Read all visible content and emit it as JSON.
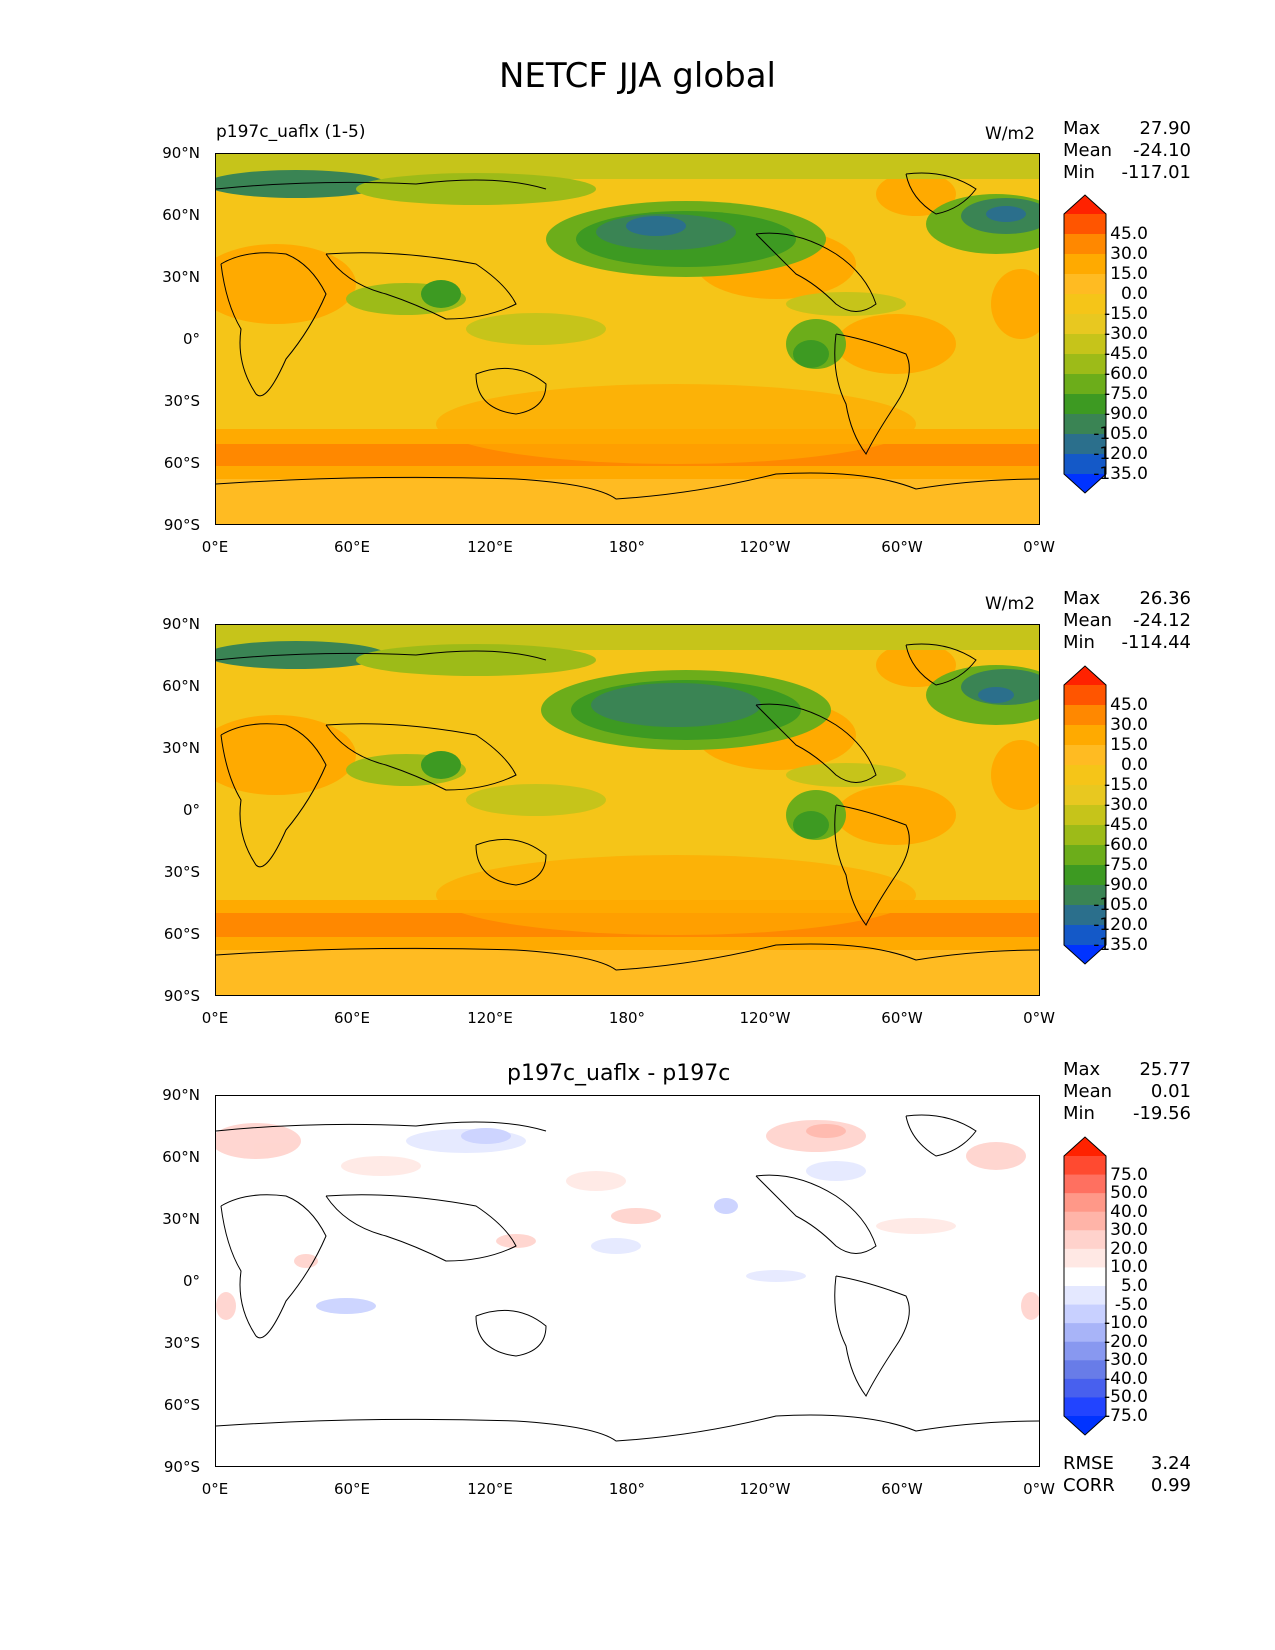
{
  "title": "NETCF JJA global",
  "lat_ticks": [
    "90°N",
    "60°N",
    "30°N",
    "0°",
    "30°S",
    "60°S",
    "90°S"
  ],
  "lon_ticks": [
    "0°E",
    "60°E",
    "120°E",
    "180°",
    "120°W",
    "60°W",
    "0°W"
  ],
  "panels": [
    {
      "left_label": "p197c_uaflx (1-5)",
      "units": "W/m2",
      "stats": {
        "max_label": "Max",
        "max": "27.90",
        "mean_label": "Mean",
        "mean": "-24.10",
        "min_label": "Min",
        "min": "-117.01"
      },
      "colorbar_ticks": [
        "45.0",
        "30.0",
        "15.0",
        "0.0",
        "-15.0",
        "-30.0",
        "-45.0",
        "-60.0",
        "-75.0",
        "-90.0",
        "-105.0",
        "-120.0",
        "-135.0"
      ]
    },
    {
      "left_label": "",
      "units": "W/m2",
      "stats": {
        "max_label": "Max",
        "max": "26.36",
        "mean_label": "Mean",
        "mean": "-24.12",
        "min_label": "Min",
        "min": "-114.44"
      },
      "colorbar_ticks": [
        "45.0",
        "30.0",
        "15.0",
        "0.0",
        "-15.0",
        "-30.0",
        "-45.0",
        "-60.0",
        "-75.0",
        "-90.0",
        "-105.0",
        "-120.0",
        "-135.0"
      ]
    },
    {
      "title": "p197c_uaflx - p197c",
      "stats": {
        "max_label": "Max",
        "max": "25.77",
        "mean_label": "Mean",
        "mean": "0.01",
        "min_label": "Min",
        "min": "-19.56"
      },
      "colorbar_ticks": [
        "75.0",
        "50.0",
        "40.0",
        "30.0",
        "20.0",
        "10.0",
        "5.0",
        "-5.0",
        "-10.0",
        "-20.0",
        "-30.0",
        "-40.0",
        "-50.0",
        "-75.0"
      ],
      "rmse_label": "RMSE",
      "rmse": "3.24",
      "corr_label": "CORR",
      "corr": "0.99"
    }
  ],
  "colors": {
    "field_scale": [
      "#ff2200",
      "#ff5500",
      "#ff8800",
      "#ffaa00",
      "#ffbb22",
      "#f5c518",
      "#e8c820",
      "#c6c41a",
      "#9dbb18",
      "#6cad1a",
      "#3d9a22",
      "#3a8454",
      "#2b6f8c",
      "#1459c8",
      "#0033ff"
    ],
    "diff_scale": [
      "#ff2200",
      "#ff4a30",
      "#ff7060",
      "#ff9888",
      "#ffb4a8",
      "#ffd2cc",
      "#ffe8e4",
      "#ffffff",
      "#e4e8ff",
      "#c8d0ff",
      "#a8b4f8",
      "#8898f0",
      "#687ce8",
      "#4860ee",
      "#2244ff",
      "#0033ff"
    ]
  }
}
